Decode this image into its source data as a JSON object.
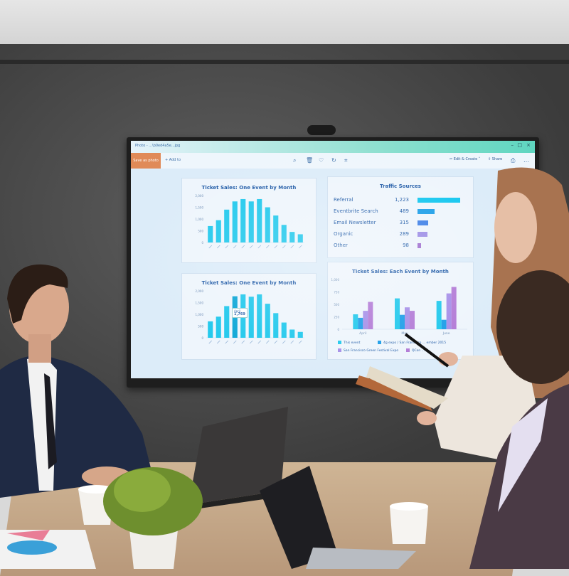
{
  "screen": {
    "url": "Photo - ...\\b0ed4a5e...jpg",
    "toolbar": {
      "save_label": "Save as photo",
      "add_label": "Add to",
      "edit_label": "Edit & Create",
      "share_label": "Share"
    },
    "chart1": {
      "title": "Ticket Sales: One Event by Month",
      "yticks": [
        "2,000",
        "1,500",
        "1,000",
        "500",
        "0"
      ],
      "ylim": [
        0,
        2000
      ],
      "values": [
        700,
        950,
        1400,
        1750,
        1850,
        1750,
        1850,
        1500,
        1150,
        750,
        450,
        350
      ],
      "color": "#1ec8ec"
    },
    "chart2": {
      "title": "Ticket Sales: One Event by Month",
      "yticks": [
        "2,000",
        "1,500",
        "1,000",
        "500",
        "0"
      ],
      "ylim": [
        0,
        2000
      ],
      "values": [
        700,
        900,
        1350,
        1769,
        1850,
        1750,
        1850,
        1450,
        1050,
        650,
        350,
        250
      ],
      "highlight_index": 3,
      "tooltip": {
        "label": "April",
        "value": "1,769"
      },
      "color": "#1ec8ec"
    },
    "traffic": {
      "title": "Traffic Sources",
      "rows": [
        {
          "label": "Referral",
          "value": "1,223",
          "n": 1223,
          "color": "#12c6ef"
        },
        {
          "label": "Eventbrite Search",
          "value": "489",
          "n": 489,
          "color": "#1a9de8"
        },
        {
          "label": "Email Newsletter",
          "value": "315",
          "n": 315,
          "color": "#3d7fe6"
        },
        {
          "label": "Organic",
          "value": "289",
          "n": 289,
          "color": "#9c8de6"
        },
        {
          "label": "Other",
          "value": "98",
          "n": 98,
          "color": "#a070d0"
        }
      ]
    },
    "chart3": {
      "title": "Ticket Sales: Each Event by Month",
      "yticks": [
        "1,000",
        "750",
        "500",
        "250",
        "0"
      ],
      "ylim": [
        0,
        1000
      ],
      "categories": [
        "April",
        "May",
        "June"
      ],
      "series": [
        {
          "name": "This event",
          "values": [
            300,
            620,
            570
          ],
          "color": "#1ec8ec"
        },
        {
          "name": "4g expo / San Francisco ... ember 2015",
          "values": [
            230,
            290,
            190
          ],
          "color": "#1a9de8"
        },
        {
          "name": "San Francisco Green Festival Expo",
          "values": [
            370,
            440,
            720
          ],
          "color": "#a58ee8"
        },
        {
          "name": "QCon ...",
          "values": [
            550,
            370,
            850
          ],
          "color": "#b27ad6"
        }
      ]
    }
  }
}
